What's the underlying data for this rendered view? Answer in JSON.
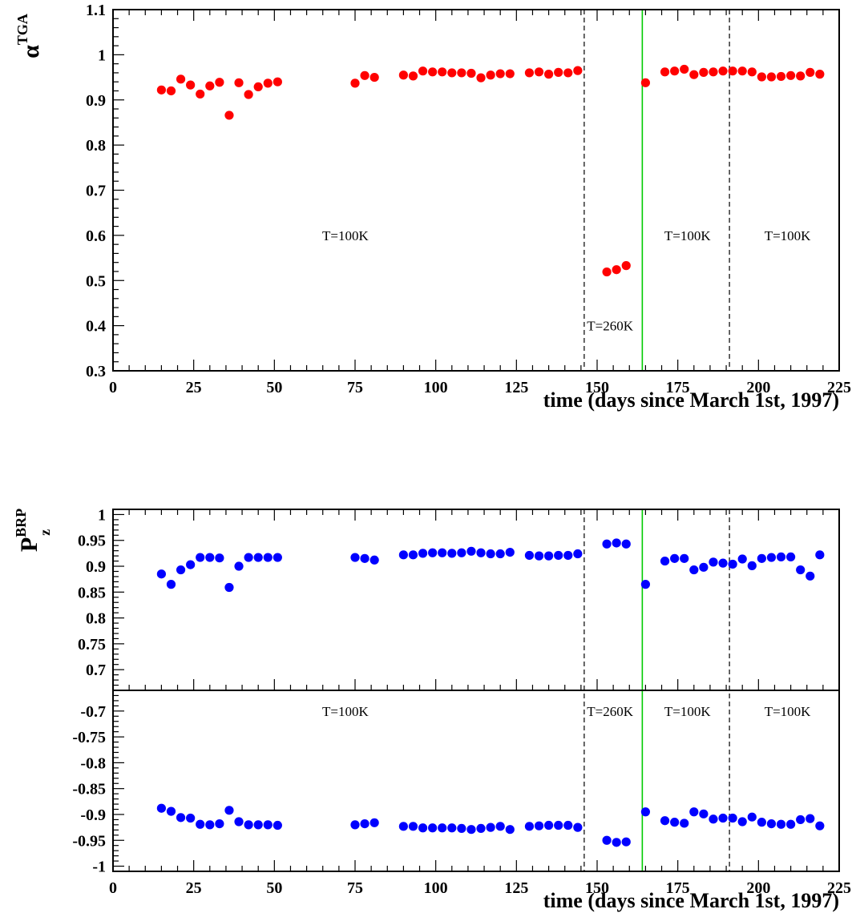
{
  "chart_data": [
    {
      "type": "scatter",
      "panel": "alpha-tga",
      "ylabel_main": "α",
      "ylabel_sup": "TGA",
      "xlabel": "time (days since March 1st, 1997)",
      "xlim": [
        0,
        225
      ],
      "ylim": [
        0.3,
        1.1
      ],
      "xticks": [
        0,
        25,
        50,
        75,
        100,
        125,
        150,
        175,
        200,
        225
      ],
      "yticks": [
        0.3,
        0.4,
        0.5,
        0.6,
        0.7,
        0.8,
        0.9,
        1,
        1.1
      ],
      "ytick_labels": [
        "0.3",
        "0.4",
        "0.5",
        "0.6",
        "0.7",
        "0.8",
        "0.9",
        "1",
        "1.1"
      ],
      "grid": false,
      "marker_color": "#ff0000",
      "series": [
        {
          "x": [
            15,
            18,
            21,
            24,
            27,
            30,
            33,
            36,
            39,
            42,
            45,
            48,
            51,
            75,
            78,
            81,
            90,
            93,
            96,
            99,
            102,
            105,
            108,
            111,
            114,
            117,
            120,
            123,
            129,
            132,
            135,
            138,
            141,
            144,
            153,
            156,
            159,
            165,
            171,
            174,
            177,
            180,
            183,
            186,
            189,
            192,
            195,
            198,
            201,
            204,
            207,
            210,
            213,
            216,
            219
          ],
          "y": [
            0.922,
            0.92,
            0.946,
            0.933,
            0.913,
            0.931,
            0.939,
            0.866,
            0.938,
            0.912,
            0.929,
            0.937,
            0.94,
            0.937,
            0.954,
            0.95,
            0.955,
            0.953,
            0.964,
            0.962,
            0.962,
            0.96,
            0.96,
            0.959,
            0.949,
            0.955,
            0.958,
            0.958,
            0.96,
            0.962,
            0.957,
            0.961,
            0.96,
            0.965,
            0.519,
            0.524,
            0.533,
            0.938,
            0.962,
            0.964,
            0.968,
            0.956,
            0.961,
            0.962,
            0.964,
            0.964,
            0.964,
            0.962,
            0.951,
            0.951,
            0.952,
            0.954,
            0.953,
            0.961,
            0.957
          ]
        }
      ],
      "vlines": [
        {
          "x": 146,
          "style": "dashed",
          "color": "#000000"
        },
        {
          "x": 164,
          "style": "solid",
          "color": "#00cc00"
        },
        {
          "x": 191,
          "style": "dashed",
          "color": "#000000"
        }
      ],
      "annotations": [
        {
          "text": "T=100K",
          "x": 72,
          "y": 0.6
        },
        {
          "text": "T=260K",
          "x": 154,
          "y": 0.4
        },
        {
          "text": "T=100K",
          "x": 178,
          "y": 0.6
        },
        {
          "text": "T=100K",
          "x": 209,
          "y": 0.6
        }
      ]
    },
    {
      "type": "scatter",
      "panel": "pz-brp",
      "ylabel_main": "P",
      "ylabel_sup": "BRP",
      "ylabel_sub": "z",
      "xlabel": "time (days since March 1st, 1997)",
      "xlim": [
        0,
        225
      ],
      "xticks": [
        0,
        25,
        50,
        75,
        100,
        125,
        150,
        175,
        200,
        225
      ],
      "grid": false,
      "marker_color": "#0000ff",
      "upper": {
        "ylim": [
          0.66,
          1.01
        ],
        "yticks": [
          0.7,
          0.75,
          0.8,
          0.85,
          0.9,
          0.95,
          1
        ],
        "ytick_labels": [
          "0.7",
          "0.75",
          "0.8",
          "0.85",
          "0.9",
          "0.95",
          "1"
        ],
        "x": [
          15,
          18,
          21,
          24,
          27,
          30,
          33,
          36,
          39,
          42,
          45,
          48,
          51,
          75,
          78,
          81,
          90,
          93,
          96,
          99,
          102,
          105,
          108,
          111,
          114,
          117,
          120,
          123,
          129,
          132,
          135,
          138,
          141,
          144,
          153,
          156,
          159,
          165,
          171,
          174,
          177,
          180,
          183,
          186,
          189,
          192,
          195,
          198,
          201,
          204,
          207,
          210,
          213,
          216,
          219
        ],
        "y": [
          0.885,
          0.865,
          0.893,
          0.903,
          0.917,
          0.917,
          0.916,
          0.859,
          0.9,
          0.917,
          0.917,
          0.917,
          0.917,
          0.917,
          0.915,
          0.912,
          0.922,
          0.922,
          0.925,
          0.926,
          0.926,
          0.925,
          0.926,
          0.929,
          0.926,
          0.924,
          0.924,
          0.927,
          0.921,
          0.92,
          0.92,
          0.921,
          0.921,
          0.924,
          0.943,
          0.945,
          0.943,
          0.865,
          0.91,
          0.915,
          0.915,
          0.893,
          0.898,
          0.908,
          0.906,
          0.904,
          0.914,
          0.901,
          0.915,
          0.917,
          0.918,
          0.918,
          0.893,
          0.881,
          0.922
        ]
      },
      "lower": {
        "ylim": [
          -1.01,
          -0.66
        ],
        "yticks": [
          -0.7,
          -0.75,
          -0.8,
          -0.85,
          -0.9,
          -0.95,
          -1
        ],
        "ytick_labels": [
          "-0.7",
          "-0.75",
          "-0.8",
          "-0.85",
          "-0.9",
          "-0.95",
          "-1"
        ],
        "x": [
          15,
          18,
          21,
          24,
          27,
          30,
          33,
          36,
          39,
          42,
          45,
          48,
          51,
          75,
          78,
          81,
          90,
          93,
          96,
          99,
          102,
          105,
          108,
          111,
          114,
          117,
          120,
          123,
          129,
          132,
          135,
          138,
          141,
          144,
          153,
          156,
          159,
          165,
          171,
          174,
          177,
          180,
          183,
          186,
          189,
          192,
          195,
          198,
          201,
          204,
          207,
          210,
          213,
          216,
          219
        ],
        "y": [
          -0.888,
          -0.894,
          -0.906,
          -0.907,
          -0.919,
          -0.92,
          -0.918,
          -0.892,
          -0.914,
          -0.92,
          -0.92,
          -0.92,
          -0.921,
          -0.92,
          -0.918,
          -0.916,
          -0.923,
          -0.923,
          -0.926,
          -0.926,
          -0.926,
          -0.926,
          -0.927,
          -0.929,
          -0.927,
          -0.925,
          -0.923,
          -0.929,
          -0.923,
          -0.922,
          -0.921,
          -0.921,
          -0.921,
          -0.925,
          -0.95,
          -0.954,
          -0.953,
          -0.895,
          -0.912,
          -0.915,
          -0.917,
          -0.895,
          -0.899,
          -0.909,
          -0.907,
          -0.907,
          -0.914,
          -0.905,
          -0.915,
          -0.918,
          -0.919,
          -0.919,
          -0.91,
          -0.908,
          -0.922
        ]
      },
      "vlines": [
        {
          "x": 146,
          "style": "dashed",
          "color": "#000000"
        },
        {
          "x": 164,
          "style": "solid",
          "color": "#00cc00"
        },
        {
          "x": 191,
          "style": "dashed",
          "color": "#000000"
        }
      ],
      "annotations": [
        {
          "text": "T=100K",
          "x": 72,
          "y": -0.7
        },
        {
          "text": "T=260K",
          "x": 154,
          "y": -0.7
        },
        {
          "text": "T=100K",
          "x": 178,
          "y": -0.7
        },
        {
          "text": "T=100K",
          "x": 209,
          "y": -0.7
        }
      ]
    }
  ]
}
